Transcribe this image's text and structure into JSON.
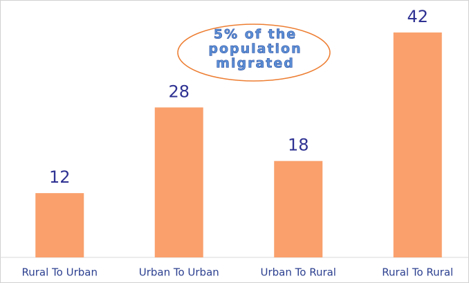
{
  "chart_data": {
    "type": "bar",
    "annotation": [
      "5% of the",
      "population",
      "migrated"
    ],
    "categories": [
      "Rural To Urban",
      "Urban To Urban",
      "Urban To Rural",
      "Rural To Rural"
    ],
    "values": [
      12,
      28,
      18,
      42
    ],
    "color": "#f9a06c"
  }
}
